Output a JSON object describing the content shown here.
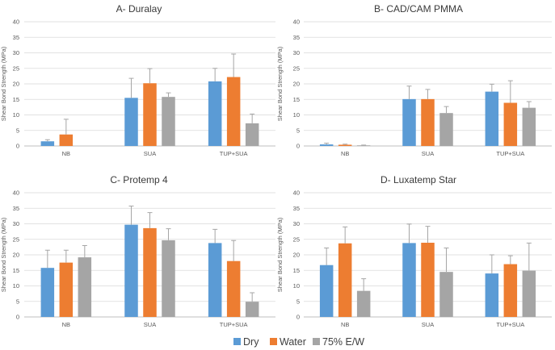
{
  "colors": {
    "Dry": "#5b9bd5",
    "Water": "#ed7d31",
    "75% E/W": "#a5a5a5"
  },
  "legend": [
    {
      "label": "Dry",
      "color": "#5b9bd5"
    },
    {
      "label": "Water",
      "color": "#ed7d31"
    },
    {
      "label": "75% E/W",
      "color": "#a5a5a5"
    }
  ],
  "chart_data": [
    {
      "type": "bar",
      "title": "A- Duralay",
      "xlabel": "",
      "ylabel": "Shear Bond Strength (MPa)",
      "ylim": [
        0,
        40
      ],
      "yticks": [
        0,
        5,
        10,
        15,
        20,
        25,
        30,
        35,
        40
      ],
      "categories": [
        "NB",
        "SUA",
        "TUP+SUA"
      ],
      "series": [
        {
          "name": "Dry",
          "values": [
            1.5,
            15.5,
            20.8
          ],
          "errors": [
            0.5,
            6.3,
            4.2
          ]
        },
        {
          "name": "Water",
          "values": [
            3.7,
            20.2,
            22.2
          ],
          "errors": [
            4.9,
            4.7,
            7.4
          ]
        },
        {
          "name": "75% E/W",
          "values": [
            null,
            15.8,
            7.3
          ],
          "errors": [
            null,
            1.3,
            3.0
          ]
        }
      ]
    },
    {
      "type": "bar",
      "title": "B- CAD/CAM PMMA",
      "xlabel": "",
      "ylabel": "Shear Bond Strength (MPa)",
      "ylim": [
        0,
        40
      ],
      "yticks": [
        0,
        5,
        10,
        15,
        20,
        25,
        30,
        35,
        40
      ],
      "categories": [
        "NB",
        "SUA",
        "TUP+SUA"
      ],
      "series": [
        {
          "name": "Dry",
          "values": [
            0.5,
            15.1,
            17.5
          ],
          "errors": [
            0.4,
            4.2,
            2.4
          ]
        },
        {
          "name": "Water",
          "values": [
            0.4,
            15.1,
            13.9
          ],
          "errors": [
            0.2,
            3.1,
            7.1
          ]
        },
        {
          "name": "75% E/W",
          "values": [
            0.2,
            10.6,
            12.3
          ],
          "errors": [
            0.1,
            2.1,
            2.0
          ]
        }
      ]
    },
    {
      "type": "bar",
      "title": "C-  Protemp 4",
      "xlabel": "",
      "ylabel": "Shear Bond Strength (MPa)",
      "ylim": [
        0,
        40
      ],
      "yticks": [
        0,
        5,
        10,
        15,
        20,
        25,
        30,
        35,
        40
      ],
      "categories": [
        "NB",
        "SUA",
        "TUP+SUA"
      ],
      "series": [
        {
          "name": "Dry",
          "values": [
            15.8,
            29.7,
            23.8
          ],
          "errors": [
            5.7,
            6.0,
            4.4
          ]
        },
        {
          "name": "Water",
          "values": [
            17.5,
            28.6,
            18.0
          ],
          "errors": [
            4.0,
            5.0,
            6.6
          ]
        },
        {
          "name": "75% E/W",
          "values": [
            19.2,
            24.7,
            4.9
          ],
          "errors": [
            3.8,
            3.7,
            2.9
          ]
        }
      ]
    },
    {
      "type": "bar",
      "title": "D- Luxatemp Star",
      "xlabel": "",
      "ylabel": "Shear Bond Strength (MPa)",
      "ylim": [
        0,
        40
      ],
      "yticks": [
        0,
        5,
        10,
        15,
        20,
        25,
        30,
        35,
        40
      ],
      "categories": [
        "NB",
        "SUA",
        "TUP+SUA"
      ],
      "series": [
        {
          "name": "Dry",
          "values": [
            16.7,
            23.8,
            14.0
          ],
          "errors": [
            5.5,
            6.1,
            6.0
          ]
        },
        {
          "name": "Water",
          "values": [
            23.7,
            23.9,
            17.0
          ],
          "errors": [
            5.3,
            5.3,
            2.7
          ]
        },
        {
          "name": "75% E/W",
          "values": [
            8.4,
            14.5,
            14.9
          ],
          "errors": [
            3.9,
            7.7,
            8.9
          ]
        }
      ]
    }
  ]
}
